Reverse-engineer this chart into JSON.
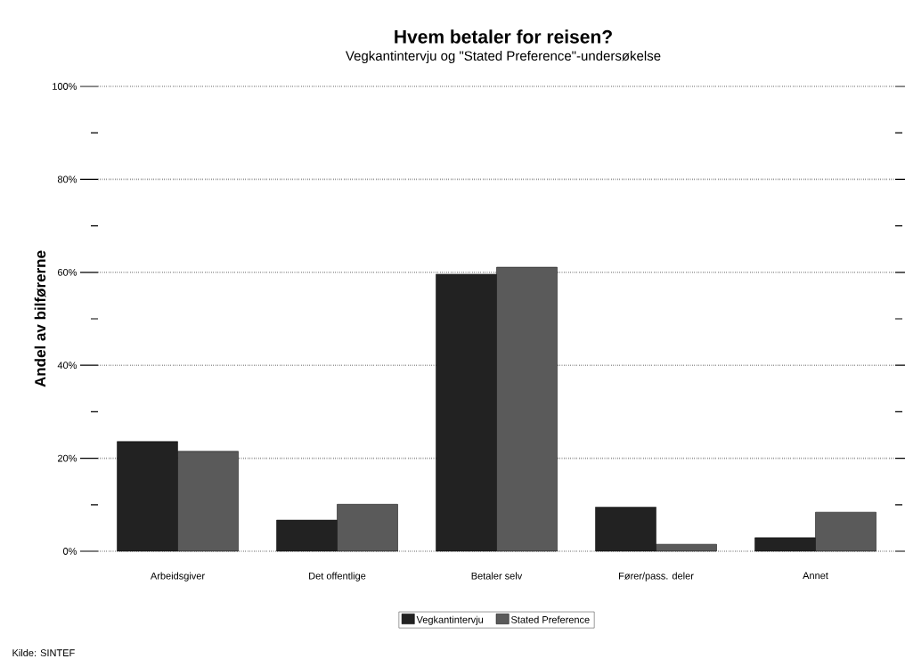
{
  "chart_data": {
    "type": "bar",
    "title": "Hvem betaler for reisen?",
    "subtitle": "Vegkantintervju og \"Stated Preference\"-undersøkelse",
    "ylabel": "Andel av bilførerne",
    "categories": [
      "Arbeidsgiver",
      "Det offentlige",
      "Betaler selv",
      "Fører/pass. deler",
      "Annet"
    ],
    "series": [
      {
        "name": "Vegkantintervju",
        "color": "#222222",
        "values": [
          23.6,
          6.7,
          59.6,
          9.5,
          2.9
        ]
      },
      {
        "name": "Stated Preference",
        "color": "#5a5a5a",
        "values": [
          21.5,
          10.1,
          61.1,
          1.5,
          8.4
        ]
      }
    ],
    "ylim": [
      0,
      100
    ],
    "yticks": [
      {
        "value": 0,
        "label": "0%"
      },
      {
        "value": 10,
        "label": null
      },
      {
        "value": 20,
        "label": "20%"
      },
      {
        "value": 30,
        "label": null
      },
      {
        "value": 40,
        "label": "40%"
      },
      {
        "value": 50,
        "label": null
      },
      {
        "value": 60,
        "label": "60%"
      },
      {
        "value": 70,
        "label": null
      },
      {
        "value": 80,
        "label": "80%"
      },
      {
        "value": 90,
        "label": null
      },
      {
        "value": 100,
        "label": "100%"
      }
    ],
    "grid": "y",
    "legend": "bottom",
    "annotations": [
      "Kilde: SINTEF"
    ]
  }
}
